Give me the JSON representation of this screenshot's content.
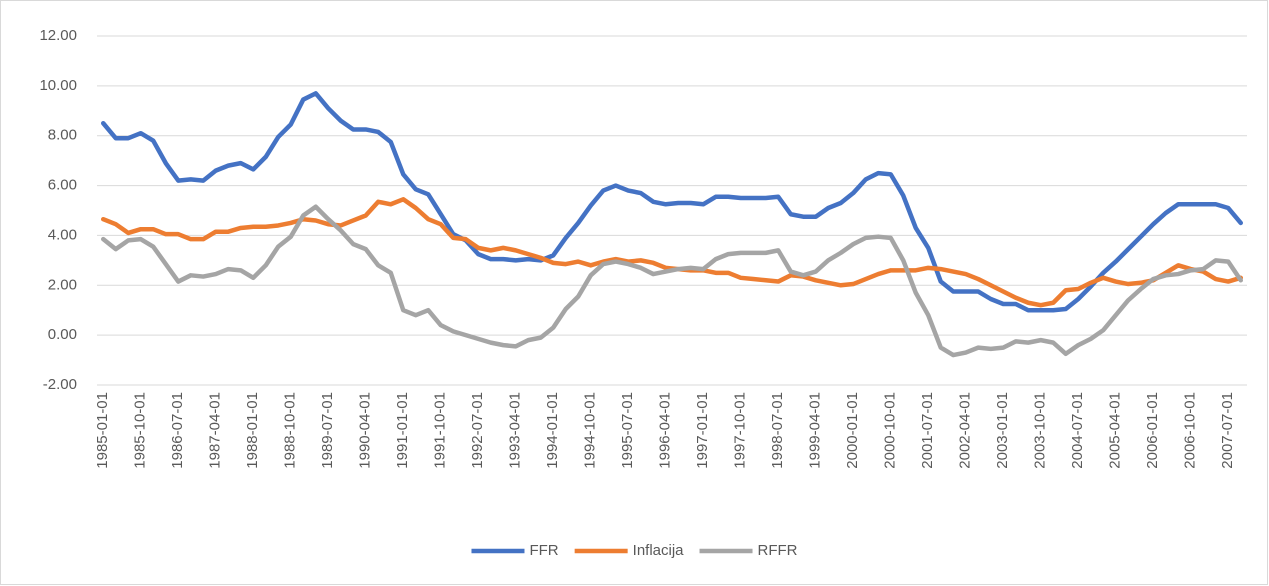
{
  "chart_data": {
    "type": "line",
    "categories": [
      "1985-01-01",
      null,
      null,
      "1985-10-01",
      null,
      null,
      "1986-07-01",
      null,
      null,
      "1987-04-01",
      null,
      null,
      "1988-01-01",
      null,
      null,
      "1988-10-01",
      null,
      null,
      "1989-07-01",
      null,
      null,
      "1990-04-01",
      null,
      null,
      "1991-01-01",
      null,
      null,
      "1991-10-01",
      null,
      null,
      "1992-07-01",
      null,
      null,
      "1993-04-01",
      null,
      null,
      "1994-01-01",
      null,
      null,
      "1994-10-01",
      null,
      null,
      "1995-07-01",
      null,
      null,
      "1996-04-01",
      null,
      null,
      "1997-01-01",
      null,
      null,
      "1997-10-01",
      null,
      null,
      "1998-07-01",
      null,
      null,
      "1999-04-01",
      null,
      null,
      "2000-01-01",
      null,
      null,
      "2000-10-01",
      null,
      null,
      "2001-07-01",
      null,
      null,
      "2002-04-01",
      null,
      null,
      "2003-01-01",
      null,
      null,
      "2003-10-01",
      null,
      null,
      "2004-07-01",
      null,
      null,
      "2005-04-01",
      null,
      null,
      "2006-01-01",
      null,
      null,
      "2006-10-01",
      null,
      null,
      "2007-07-01",
      null
    ],
    "series": [
      {
        "name": "FFR",
        "color": "#4472c4",
        "values": [
          8.5,
          7.9,
          7.9,
          8.1,
          7.8,
          6.9,
          6.2,
          6.25,
          6.2,
          6.6,
          6.8,
          6.9,
          6.65,
          7.15,
          7.95,
          8.45,
          9.45,
          9.7,
          9.1,
          8.6,
          8.25,
          8.25,
          8.15,
          7.75,
          6.45,
          5.85,
          5.65,
          4.85,
          4.05,
          3.8,
          3.25,
          3.05,
          3.05,
          3.0,
          3.05,
          3.0,
          3.2,
          3.9,
          4.5,
          5.2,
          5.8,
          6.0,
          5.8,
          5.7,
          5.35,
          5.25,
          5.3,
          5.3,
          5.25,
          5.55,
          5.55,
          5.5,
          5.5,
          5.5,
          5.55,
          4.85,
          4.75,
          4.75,
          5.1,
          5.3,
          5.7,
          6.25,
          6.5,
          6.45,
          5.6,
          4.3,
          3.5,
          2.15,
          1.75,
          1.75,
          1.75,
          1.45,
          1.25,
          1.25,
          1.0,
          1.0,
          1.0,
          1.05,
          1.45,
          1.95,
          2.5,
          2.95,
          3.45,
          3.95,
          4.45,
          4.9,
          5.25,
          5.25,
          5.25,
          5.25,
          5.1,
          4.5
        ]
      },
      {
        "name": "Inflacija",
        "color": "#ed7d31",
        "values": [
          4.65,
          4.45,
          4.1,
          4.25,
          4.25,
          4.05,
          4.05,
          3.85,
          3.85,
          4.15,
          4.15,
          4.3,
          4.35,
          4.35,
          4.4,
          4.5,
          4.65,
          4.6,
          4.45,
          4.4,
          4.6,
          4.8,
          5.35,
          5.25,
          5.45,
          5.1,
          4.65,
          4.45,
          3.9,
          3.85,
          3.5,
          3.4,
          3.5,
          3.4,
          3.25,
          3.1,
          2.9,
          2.85,
          2.95,
          2.8,
          2.95,
          3.05,
          2.95,
          3.0,
          2.9,
          2.7,
          2.65,
          2.6,
          2.6,
          2.5,
          2.5,
          2.3,
          2.25,
          2.2,
          2.15,
          2.4,
          2.35,
          2.2,
          2.1,
          2.0,
          2.05,
          2.25,
          2.45,
          2.6,
          2.6,
          2.6,
          2.7,
          2.65,
          2.55,
          2.45,
          2.25,
          2.0,
          1.75,
          1.5,
          1.3,
          1.2,
          1.3,
          1.8,
          1.85,
          2.1,
          2.3,
          2.15,
          2.05,
          2.1,
          2.2,
          2.5,
          2.8,
          2.65,
          2.55,
          2.25,
          2.15,
          2.3
        ]
      },
      {
        "name": "RFFR",
        "color": "#a5a5a5",
        "values": [
          3.85,
          3.45,
          3.8,
          3.85,
          3.55,
          2.85,
          2.15,
          2.4,
          2.35,
          2.45,
          2.65,
          2.6,
          2.3,
          2.8,
          3.55,
          3.95,
          4.8,
          5.15,
          4.65,
          4.2,
          3.65,
          3.45,
          2.8,
          2.5,
          1.0,
          0.8,
          1.0,
          0.4,
          0.15,
          0.0,
          -0.15,
          -0.3,
          -0.4,
          -0.45,
          -0.2,
          -0.1,
          0.3,
          1.05,
          1.55,
          2.4,
          2.85,
          2.95,
          2.85,
          2.7,
          2.45,
          2.55,
          2.65,
          2.7,
          2.65,
          3.05,
          3.25,
          3.3,
          3.3,
          3.3,
          3.4,
          2.55,
          2.4,
          2.55,
          3.0,
          3.3,
          3.65,
          3.9,
          3.95,
          3.9,
          3.0,
          1.7,
          0.8,
          -0.5,
          -0.8,
          -0.7,
          -0.5,
          -0.55,
          -0.5,
          -0.25,
          -0.3,
          -0.2,
          -0.3,
          -0.75,
          -0.4,
          -0.15,
          0.2,
          0.8,
          1.4,
          1.85,
          2.25,
          2.4,
          2.45,
          2.6,
          2.65,
          3.0,
          2.95,
          2.2
        ]
      }
    ],
    "ylim": [
      -2,
      12
    ],
    "yticks": [
      {
        "value": -2,
        "label": "-2.00"
      },
      {
        "value": 0,
        "label": "0.00"
      },
      {
        "value": 2,
        "label": "2.00"
      },
      {
        "value": 4,
        "label": "4.00"
      },
      {
        "value": 6,
        "label": "6.00"
      },
      {
        "value": 8,
        "label": "8.00"
      },
      {
        "value": 10,
        "label": "10.00"
      },
      {
        "value": 12,
        "label": "12.00"
      }
    ],
    "grid": true,
    "legend": "bottom"
  }
}
